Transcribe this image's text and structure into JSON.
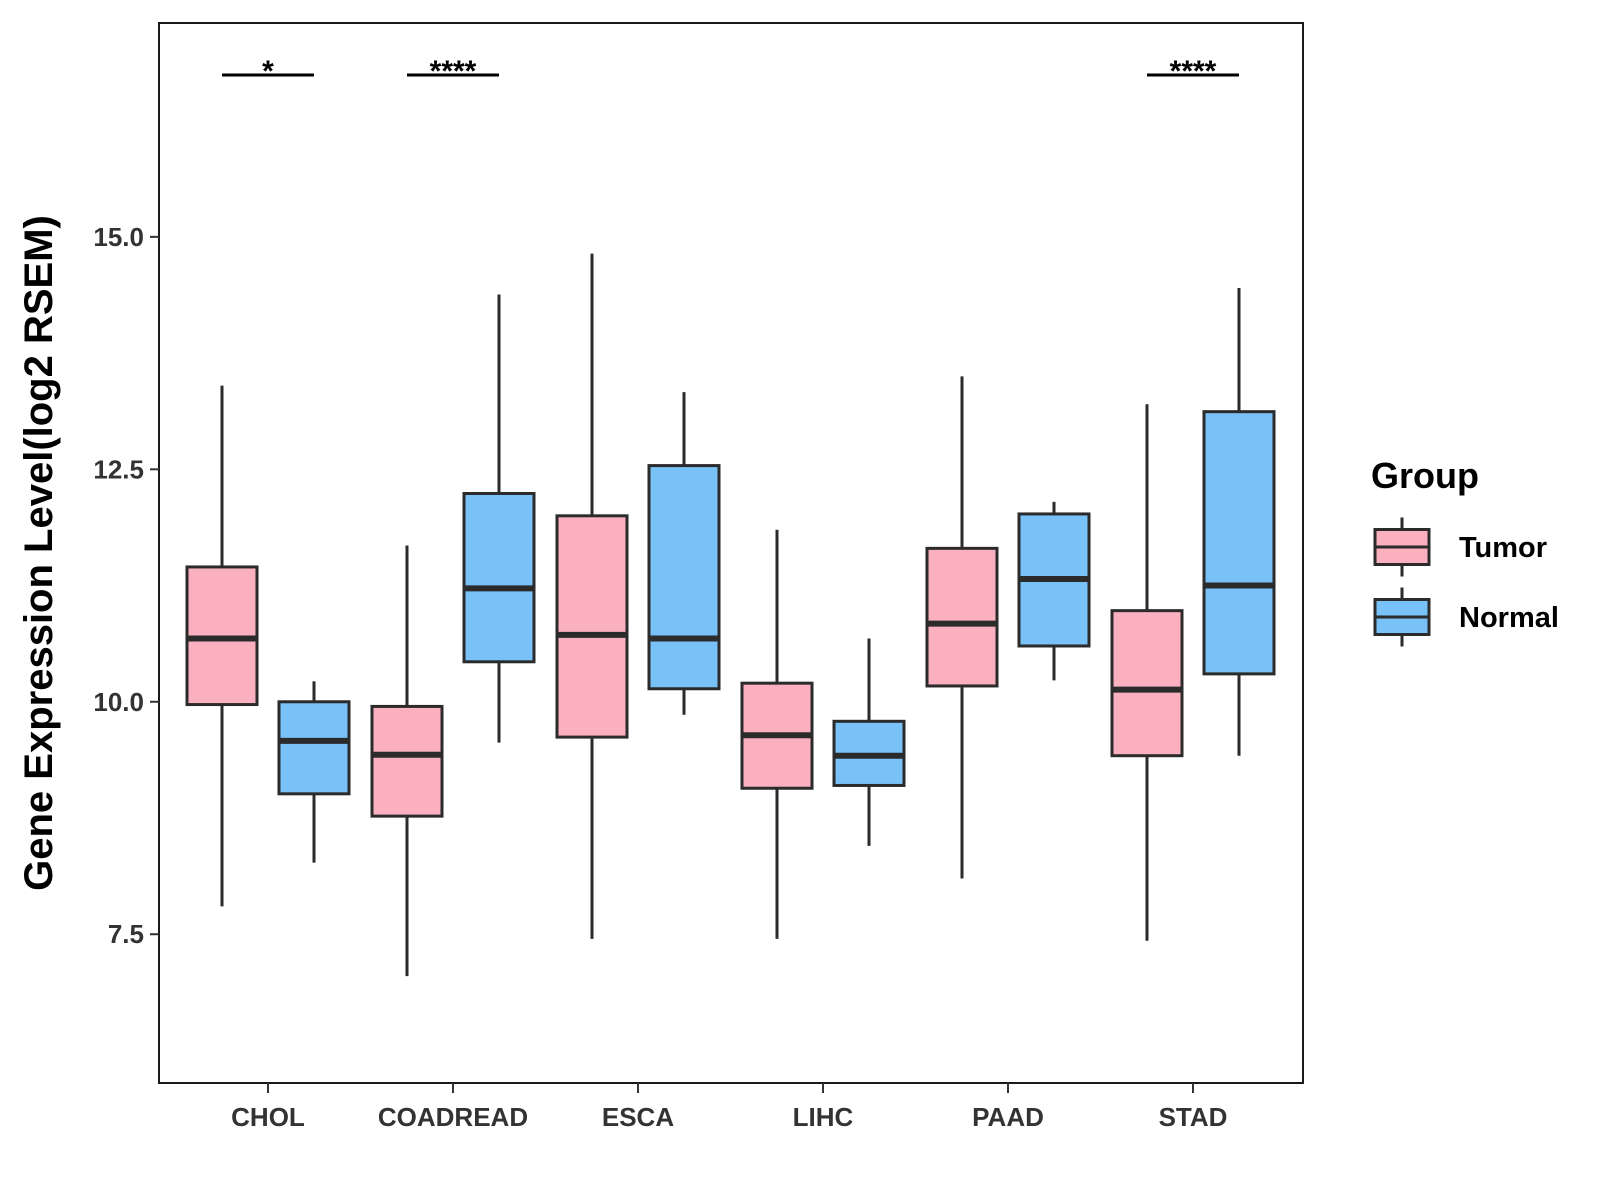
{
  "chart_data": {
    "type": "boxplot",
    "title": "",
    "xlabel": "",
    "ylabel": "Gene Expression Level(log2 RSEM)",
    "ylim": [
      5.9,
      17.3
    ],
    "yticks": [
      7.5,
      10.0,
      12.5,
      15.0
    ],
    "ytick_labels": [
      "7.5",
      "10.0",
      "12.5",
      "15.0"
    ],
    "grid": false,
    "categories": [
      "CHOL",
      "COADREAD",
      "ESCA",
      "LIHC",
      "PAAD",
      "STAD"
    ],
    "legend": {
      "title": "Group",
      "placement": "right",
      "entries": [
        {
          "name": "Tumor",
          "color": "#FBB0C0"
        },
        {
          "name": "Normal",
          "color": "#79C2F8"
        }
      ]
    },
    "series": [
      {
        "name": "Tumor",
        "color": "#FBB0C0",
        "boxes": [
          {
            "min": 7.8,
            "q1": 9.97,
            "median": 10.68,
            "q3": 11.45,
            "max": 13.4
          },
          {
            "min": 7.05,
            "q1": 8.77,
            "median": 9.43,
            "q3": 9.95,
            "max": 11.68
          },
          {
            "min": 7.45,
            "q1": 9.62,
            "median": 10.72,
            "q3": 12.0,
            "max": 14.82
          },
          {
            "min": 7.45,
            "q1": 9.07,
            "median": 9.64,
            "q3": 10.2,
            "max": 11.85
          },
          {
            "min": 8.1,
            "q1": 10.17,
            "median": 10.84,
            "q3": 11.65,
            "max": 13.5
          },
          {
            "min": 7.43,
            "q1": 9.42,
            "median": 10.13,
            "q3": 10.98,
            "max": 13.2
          }
        ]
      },
      {
        "name": "Normal",
        "color": "#79C2F8",
        "boxes": [
          {
            "min": 8.27,
            "q1": 9.01,
            "median": 9.58,
            "q3": 10.0,
            "max": 10.22
          },
          {
            "min": 9.56,
            "q1": 10.43,
            "median": 11.22,
            "q3": 12.24,
            "max": 14.38
          },
          {
            "min": 9.86,
            "q1": 10.14,
            "median": 10.68,
            "q3": 12.54,
            "max": 13.33
          },
          {
            "min": 8.45,
            "q1": 9.1,
            "median": 9.42,
            "q3": 9.79,
            "max": 10.68
          },
          {
            "min": 10.23,
            "q1": 10.6,
            "median": 11.32,
            "q3": 12.02,
            "max": 12.15
          },
          {
            "min": 9.42,
            "q1": 10.3,
            "median": 11.25,
            "q3": 13.12,
            "max": 14.45
          }
        ]
      }
    ],
    "significance": [
      {
        "category": "CHOL",
        "label": "*"
      },
      {
        "category": "COADREAD",
        "label": "****"
      },
      {
        "category": "STAD",
        "label": "****"
      }
    ]
  }
}
